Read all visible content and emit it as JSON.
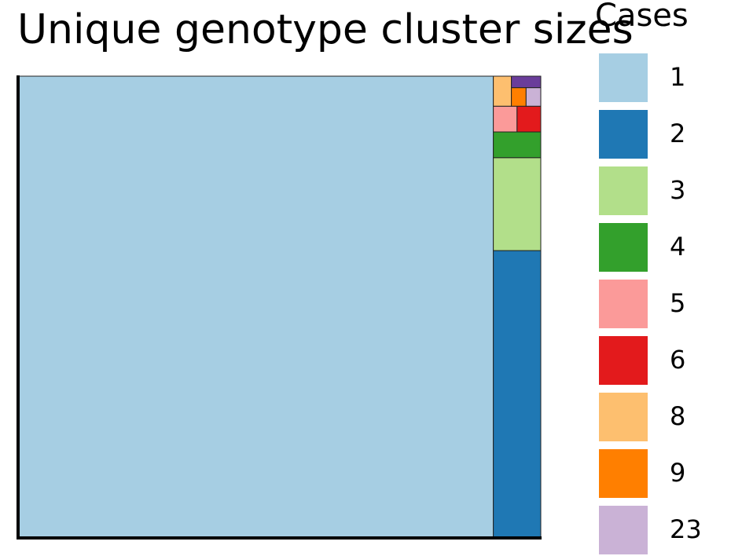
{
  "chart_data": {
    "type": "treemap",
    "title": "Unique genotype cluster sizes",
    "legend_title": "Cases",
    "legend_position": "right",
    "series": [
      {
        "label": "1",
        "color": "#a6cee3",
        "value": 3235
      },
      {
        "label": "2",
        "color": "#1f78b4",
        "value": 201
      },
      {
        "label": "3",
        "color": "#b2df8a",
        "value": 65
      },
      {
        "label": "4",
        "color": "#33a02c",
        "value": 18
      },
      {
        "label": "5",
        "color": "#fb9a99",
        "value": 9
      },
      {
        "label": "6",
        "color": "#e31a1c",
        "value": 9
      },
      {
        "label": "8",
        "color": "#fdbf6f",
        "value": 8
      },
      {
        "label": "9",
        "color": "#ff7f00",
        "value": 4
      },
      {
        "label": "23",
        "color": "#cab2d6",
        "value": 4
      },
      {
        "label": "",
        "color": "#6a3d9a",
        "value": 5
      }
    ]
  }
}
